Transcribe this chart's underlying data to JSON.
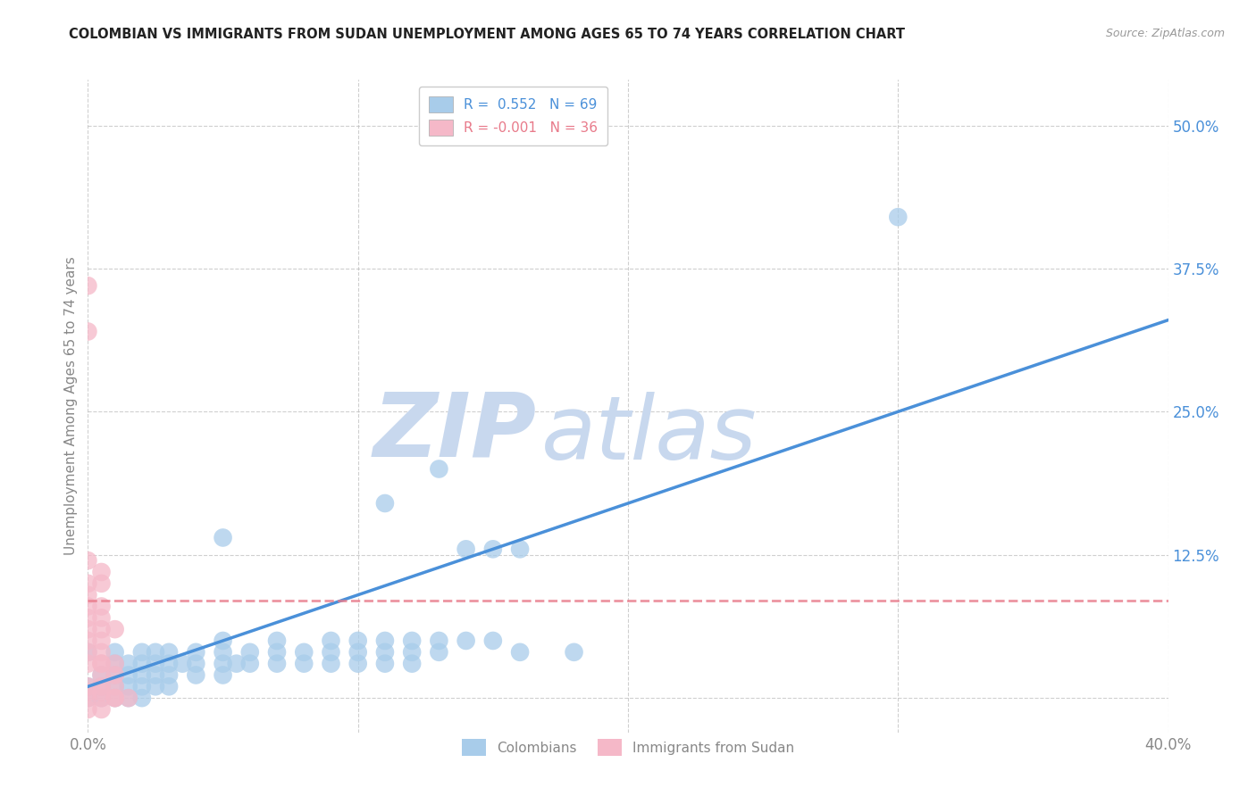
{
  "title": "COLOMBIAN VS IMMIGRANTS FROM SUDAN UNEMPLOYMENT AMONG AGES 65 TO 74 YEARS CORRELATION CHART",
  "source": "Source: ZipAtlas.com",
  "ylabel": "Unemployment Among Ages 65 to 74 years",
  "x_min": 0.0,
  "x_max": 0.4,
  "y_min": -0.03,
  "y_max": 0.54,
  "x_ticks": [
    0.0,
    0.1,
    0.2,
    0.3,
    0.4
  ],
  "x_tick_labels": [
    "0.0%",
    "",
    "",
    "",
    "40.0%"
  ],
  "y_ticks": [
    0.0,
    0.125,
    0.25,
    0.375,
    0.5
  ],
  "y_tick_labels": [
    "",
    "12.5%",
    "25.0%",
    "37.5%",
    "50.0%"
  ],
  "colombian_R": 0.552,
  "colombian_N": 69,
  "sudan_R": -0.001,
  "sudan_N": 36,
  "colombian_color": "#A8CCEA",
  "sudan_color": "#F5B8C8",
  "colombian_line_color": "#4A90D9",
  "sudan_line_color": "#E87A8A",
  "watermark_zip": "ZIP",
  "watermark_atlas": "atlas",
  "watermark_color": "#C8D8EE",
  "background_color": "#FFFFFF",
  "grid_color": "#BBBBBB",
  "title_color": "#222222",
  "axis_label_color": "#888888",
  "tick_color_y": "#4A90D9",
  "legend_label_1": "Colombians",
  "legend_label_2": "Immigrants from Sudan",
  "colombian_line_x": [
    0.0,
    0.4
  ],
  "colombian_line_y": [
    0.01,
    0.33
  ],
  "sudan_line_x": [
    0.0,
    0.4
  ],
  "sudan_line_y": [
    0.085,
    0.085
  ],
  "colombian_points": [
    [
      0.0,
      0.0
    ],
    [
      0.005,
      0.0
    ],
    [
      0.01,
      0.0
    ],
    [
      0.015,
      0.0
    ],
    [
      0.02,
      0.0
    ],
    [
      0.0,
      0.01
    ],
    [
      0.005,
      0.01
    ],
    [
      0.01,
      0.01
    ],
    [
      0.015,
      0.01
    ],
    [
      0.02,
      0.01
    ],
    [
      0.025,
      0.01
    ],
    [
      0.03,
      0.01
    ],
    [
      0.005,
      0.02
    ],
    [
      0.01,
      0.02
    ],
    [
      0.015,
      0.02
    ],
    [
      0.02,
      0.02
    ],
    [
      0.025,
      0.02
    ],
    [
      0.03,
      0.02
    ],
    [
      0.04,
      0.02
    ],
    [
      0.05,
      0.02
    ],
    [
      0.01,
      0.03
    ],
    [
      0.015,
      0.03
    ],
    [
      0.02,
      0.03
    ],
    [
      0.025,
      0.03
    ],
    [
      0.03,
      0.03
    ],
    [
      0.035,
      0.03
    ],
    [
      0.04,
      0.03
    ],
    [
      0.05,
      0.03
    ],
    [
      0.055,
      0.03
    ],
    [
      0.06,
      0.03
    ],
    [
      0.07,
      0.03
    ],
    [
      0.08,
      0.03
    ],
    [
      0.09,
      0.03
    ],
    [
      0.1,
      0.03
    ],
    [
      0.11,
      0.03
    ],
    [
      0.12,
      0.03
    ],
    [
      0.0,
      0.04
    ],
    [
      0.01,
      0.04
    ],
    [
      0.02,
      0.04
    ],
    [
      0.025,
      0.04
    ],
    [
      0.03,
      0.04
    ],
    [
      0.04,
      0.04
    ],
    [
      0.05,
      0.04
    ],
    [
      0.06,
      0.04
    ],
    [
      0.07,
      0.04
    ],
    [
      0.08,
      0.04
    ],
    [
      0.09,
      0.04
    ],
    [
      0.1,
      0.04
    ],
    [
      0.11,
      0.04
    ],
    [
      0.12,
      0.04
    ],
    [
      0.13,
      0.04
    ],
    [
      0.05,
      0.05
    ],
    [
      0.07,
      0.05
    ],
    [
      0.09,
      0.05
    ],
    [
      0.1,
      0.05
    ],
    [
      0.11,
      0.05
    ],
    [
      0.12,
      0.05
    ],
    [
      0.13,
      0.05
    ],
    [
      0.14,
      0.05
    ],
    [
      0.05,
      0.14
    ],
    [
      0.13,
      0.2
    ],
    [
      0.11,
      0.17
    ],
    [
      0.14,
      0.13
    ],
    [
      0.15,
      0.13
    ],
    [
      0.16,
      0.13
    ],
    [
      0.15,
      0.05
    ],
    [
      0.16,
      0.04
    ],
    [
      0.18,
      0.04
    ],
    [
      0.3,
      0.42
    ]
  ],
  "sudan_points": [
    [
      0.0,
      0.0
    ],
    [
      0.005,
      0.0
    ],
    [
      0.01,
      0.0
    ],
    [
      0.0,
      0.005
    ],
    [
      0.005,
      0.005
    ],
    [
      0.0,
      0.01
    ],
    [
      0.005,
      0.01
    ],
    [
      0.01,
      0.01
    ],
    [
      0.005,
      0.02
    ],
    [
      0.01,
      0.02
    ],
    [
      0.0,
      0.03
    ],
    [
      0.005,
      0.03
    ],
    [
      0.0,
      0.04
    ],
    [
      0.005,
      0.04
    ],
    [
      0.0,
      0.05
    ],
    [
      0.005,
      0.05
    ],
    [
      0.0,
      0.06
    ],
    [
      0.005,
      0.06
    ],
    [
      0.0,
      0.07
    ],
    [
      0.005,
      0.07
    ],
    [
      0.0,
      0.08
    ],
    [
      0.005,
      0.08
    ],
    [
      0.0,
      0.09
    ],
    [
      0.0,
      0.1
    ],
    [
      0.005,
      0.1
    ],
    [
      0.0,
      0.12
    ],
    [
      0.0,
      0.36
    ],
    [
      0.0,
      0.32
    ],
    [
      0.01,
      0.0
    ],
    [
      0.015,
      0.0
    ],
    [
      0.0,
      -0.01
    ],
    [
      0.005,
      -0.01
    ],
    [
      0.01,
      0.06
    ],
    [
      0.005,
      0.11
    ],
    [
      0.01,
      0.03
    ],
    [
      0.005,
      0.03
    ]
  ]
}
